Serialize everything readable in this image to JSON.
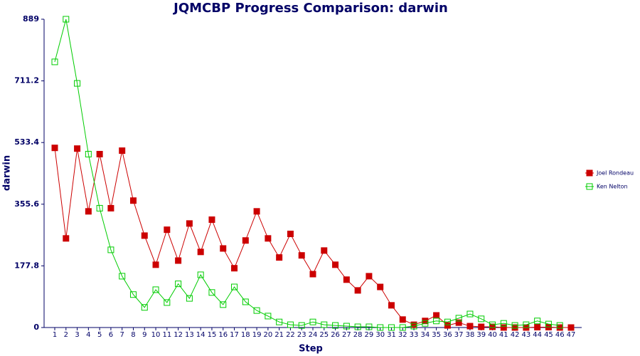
{
  "chart_data": {
    "type": "line",
    "title": "JQMCBP Progress Comparison: darwin",
    "x_label": "Step",
    "y_label": "darwin",
    "categories": [
      "1",
      "2",
      "3",
      "4",
      "5",
      "6",
      "7",
      "8",
      "9",
      "10",
      "11",
      "12",
      "13",
      "14",
      "15",
      "16",
      "17",
      "18",
      "19",
      "20",
      "21",
      "22",
      "23",
      "24",
      "25",
      "26",
      "27",
      "28",
      "29",
      "30",
      "31",
      "32",
      "33",
      "34",
      "35",
      "36",
      "37",
      "38",
      "39",
      "40",
      "41",
      "42",
      "43",
      "44",
      "45",
      "46",
      "47"
    ],
    "ylim": [
      0,
      889
    ],
    "yticks": [
      0,
      177.8,
      355.6,
      533.4,
      711.2,
      889
    ],
    "legend": "right",
    "series": [
      {
        "name": "Joel Rondeau",
        "color": "#cc0000",
        "marker": "filled-square",
        "values": [
          518,
          257,
          516,
          335,
          500,
          344,
          510,
          366,
          265,
          181,
          282,
          193,
          300,
          218,
          311,
          228,
          171,
          251,
          335,
          257,
          202,
          270,
          208,
          154,
          222,
          181,
          138,
          107,
          148,
          117,
          64,
          23,
          8,
          19,
          35,
          6,
          14,
          4,
          2,
          2,
          0,
          0,
          0,
          1,
          1,
          0,
          0
        ]
      },
      {
        "name": "Ken Nelton",
        "color": "#00cc00",
        "marker": "open-square",
        "values": [
          766,
          889,
          704,
          500,
          344,
          224,
          148,
          95,
          58,
          109,
          72,
          126,
          84,
          152,
          101,
          66,
          117,
          74,
          49,
          33,
          16,
          8,
          6,
          16,
          8,
          6,
          4,
          2,
          2,
          0,
          0,
          0,
          4,
          12,
          19,
          16,
          27,
          39,
          25,
          8,
          12,
          6,
          8,
          19,
          10,
          6,
          null
        ]
      }
    ]
  }
}
